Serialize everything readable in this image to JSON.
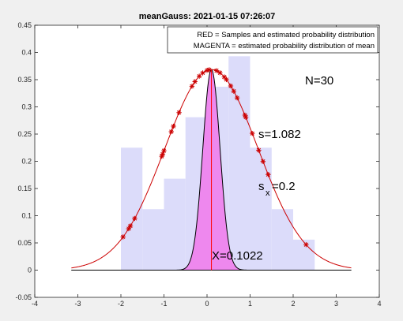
{
  "chart_data": {
    "type": "bar+line",
    "title": "meanGauss: 2021-01-15 07:26:07",
    "xlabel": "",
    "ylabel": "",
    "xlim": [
      -4,
      4
    ],
    "ylim": [
      -0.05,
      0.45
    ],
    "xticks": [
      "-4",
      "-3",
      "-2",
      "-1",
      "0",
      "1",
      "2",
      "3",
      "4"
    ],
    "yticks": [
      "-0.05",
      "0",
      "0.05",
      "0.1",
      "0.15",
      "0.2",
      "0.25",
      "0.3",
      "0.35",
      "0.4",
      "0.45"
    ],
    "grid": false,
    "legend": {
      "placement": "top-right",
      "entries": [
        "RED = Samples and estimated probability distribution",
        "MAGENTA = estimated probability distribution of mean"
      ]
    },
    "histogram": {
      "bin_edges": [
        -2.0,
        -1.5,
        -1.0,
        -0.5,
        0.0,
        0.5,
        1.0,
        1.5,
        2.0,
        2.5
      ],
      "values": [
        0.225,
        0.112,
        0.168,
        0.281,
        0.337,
        0.393,
        0.225,
        0.112,
        0.056
      ],
      "color": "#dcdcfa"
    },
    "sample_distribution": {
      "mean": 0.1022,
      "sigma": 1.082,
      "x_range": [
        -3.15,
        3.35
      ],
      "color": "#cc0000"
    },
    "mean_distribution": {
      "mean": 0.1022,
      "sigma": 0.2,
      "x_range": [
        -3.15,
        3.35
      ],
      "fill": "#ee88ee",
      "color": "#000000"
    },
    "samples_x": [
      -1.95,
      -1.82,
      -1.78,
      -1.68,
      -1.05,
      -1.03,
      -1.0,
      -0.83,
      -0.78,
      -0.65,
      -0.35,
      -0.28,
      -0.18,
      -0.1,
      0.0,
      0.05,
      0.22,
      0.3,
      0.4,
      0.45,
      0.55,
      0.62,
      0.7,
      0.88,
      0.9,
      1.05,
      1.2,
      1.3,
      1.42,
      2.3
    ],
    "mean_line": {
      "x": 0.1022,
      "color": "#ff0000"
    },
    "annotations": {
      "n": "N=30",
      "s": "s=1.082",
      "sx_main": "s",
      "sx_sub": "x",
      "sx_value": "=0.2",
      "mean": "X=0.1022"
    }
  }
}
